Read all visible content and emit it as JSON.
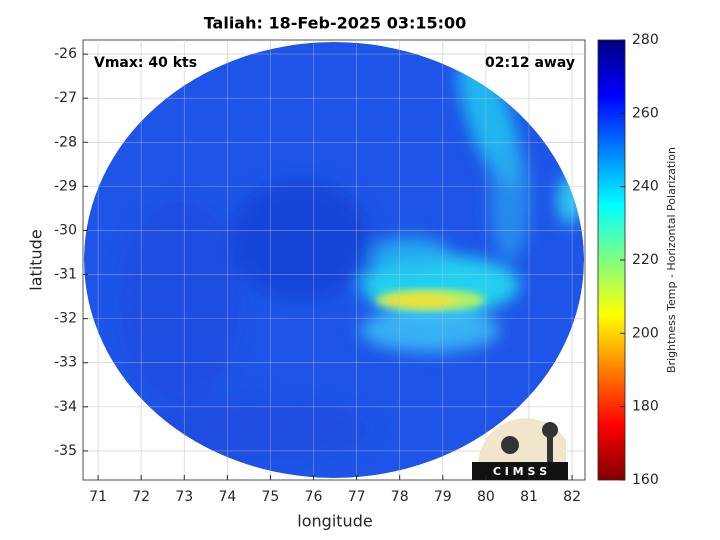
{
  "chart_data": {
    "type": "image",
    "title": "Taliah: 18-Feb-2025 03:15:00",
    "annotations": [
      "Vmax: 40 kts",
      "02:12 away"
    ],
    "x_label": "longitude",
    "y_label": "latitude",
    "xlim": [
      70.65,
      82.3
    ],
    "xticks": [
      71,
      72,
      73,
      74,
      75,
      76,
      77,
      78,
      79,
      80,
      81,
      82
    ],
    "ylim": [
      -35.66,
      -25.68
    ],
    "yticks": [
      -26,
      -27,
      -28,
      -29,
      -30,
      -31,
      -32,
      -33,
      -34,
      -35
    ],
    "grid": true,
    "colorbar": {
      "label": "Brightness Temp - Horizontal Polarization",
      "lim": [
        160,
        280
      ],
      "ticks": [
        160,
        180,
        200,
        220,
        240,
        260,
        280
      ],
      "colormap": "jet"
    },
    "logo": "C I M S S"
  }
}
